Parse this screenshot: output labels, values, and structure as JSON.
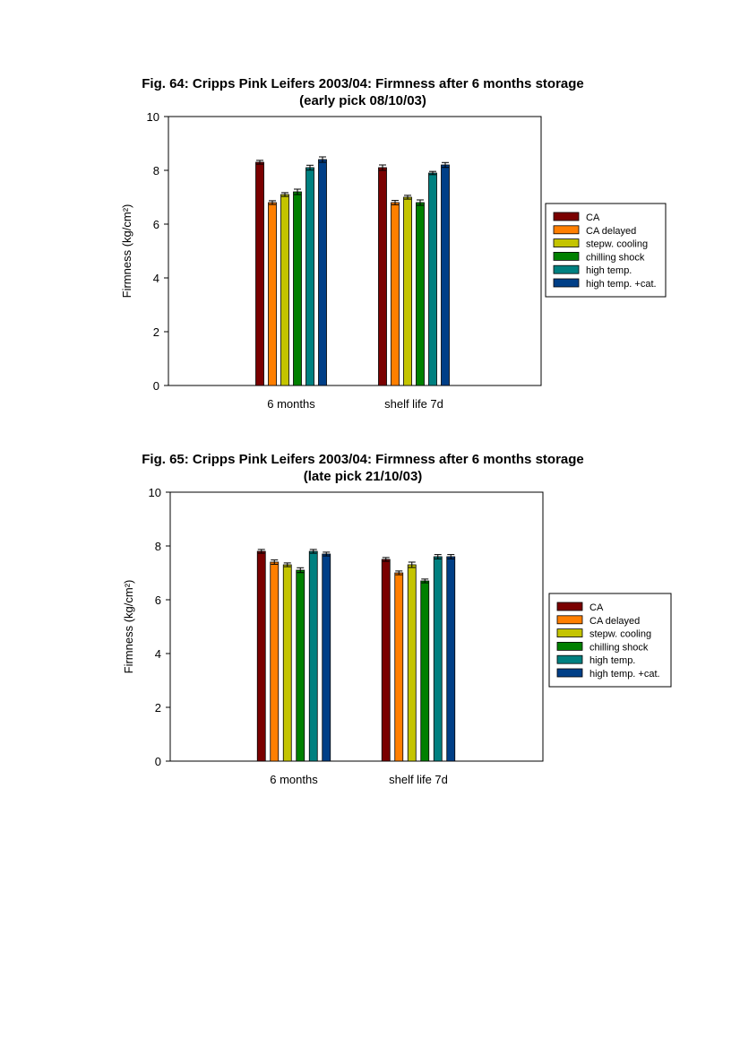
{
  "chart_data": [
    {
      "type": "bar",
      "title": "Fig. 64: Cripps Pink Leifers 2003/04: Firmness after 6 months storage",
      "subtitle": "(early pick 08/10/03)",
      "ylabel": "Firmness (kg/cm²)",
      "xlabel": "",
      "ylim": [
        0,
        10
      ],
      "yticks": [
        0,
        2,
        4,
        6,
        8,
        10
      ],
      "categories": [
        "6 months",
        "shelf life 7d"
      ],
      "grid": false,
      "legend_position": "right",
      "error_bars": true,
      "series": [
        {
          "name": "CA",
          "color": "#7a0000",
          "values": [
            8.3,
            8.1
          ],
          "errors": [
            0.07,
            0.1
          ]
        },
        {
          "name": "CA delayed",
          "color": "#ff7f00",
          "values": [
            6.8,
            6.8
          ],
          "errors": [
            0.07,
            0.08
          ]
        },
        {
          "name": "stepw. cooling",
          "color": "#c4c400",
          "values": [
            7.1,
            7.0
          ],
          "errors": [
            0.07,
            0.07
          ]
        },
        {
          "name": "chilling shock",
          "color": "#008000",
          "values": [
            7.2,
            6.8
          ],
          "errors": [
            0.1,
            0.1
          ]
        },
        {
          "name": "high temp.",
          "color": "#008080",
          "values": [
            8.1,
            7.9
          ],
          "errors": [
            0.09,
            0.06
          ]
        },
        {
          "name": "high temp. +cat.",
          "color": "#003f87",
          "values": [
            8.4,
            8.2
          ],
          "errors": [
            0.1,
            0.09
          ]
        }
      ]
    },
    {
      "type": "bar",
      "title": "Fig. 65: Cripps Pink Leifers 2003/04: Firmness after 6 months storage",
      "subtitle": "(late pick 21/10/03)",
      "ylabel": "Firmness (kg/cm²)",
      "xlabel": "",
      "ylim": [
        0,
        10
      ],
      "yticks": [
        0,
        2,
        4,
        6,
        8,
        10
      ],
      "categories": [
        "6 months",
        "shelf life 7d"
      ],
      "grid": false,
      "legend_position": "right",
      "error_bars": true,
      "series": [
        {
          "name": "CA",
          "color": "#7a0000",
          "values": [
            7.8,
            7.5
          ],
          "errors": [
            0.07,
            0.07
          ]
        },
        {
          "name": "CA delayed",
          "color": "#ff7f00",
          "values": [
            7.4,
            7.0
          ],
          "errors": [
            0.08,
            0.07
          ]
        },
        {
          "name": "stepw. cooling",
          "color": "#c4c400",
          "values": [
            7.3,
            7.3
          ],
          "errors": [
            0.07,
            0.1
          ]
        },
        {
          "name": "chilling shock",
          "color": "#008000",
          "values": [
            7.1,
            6.7
          ],
          "errors": [
            0.09,
            0.07
          ]
        },
        {
          "name": "high temp.",
          "color": "#008080",
          "values": [
            7.8,
            7.6
          ],
          "errors": [
            0.07,
            0.08
          ]
        },
        {
          "name": "high temp. +cat.",
          "color": "#003f87",
          "values": [
            7.7,
            7.6
          ],
          "errors": [
            0.07,
            0.08
          ]
        }
      ]
    }
  ]
}
